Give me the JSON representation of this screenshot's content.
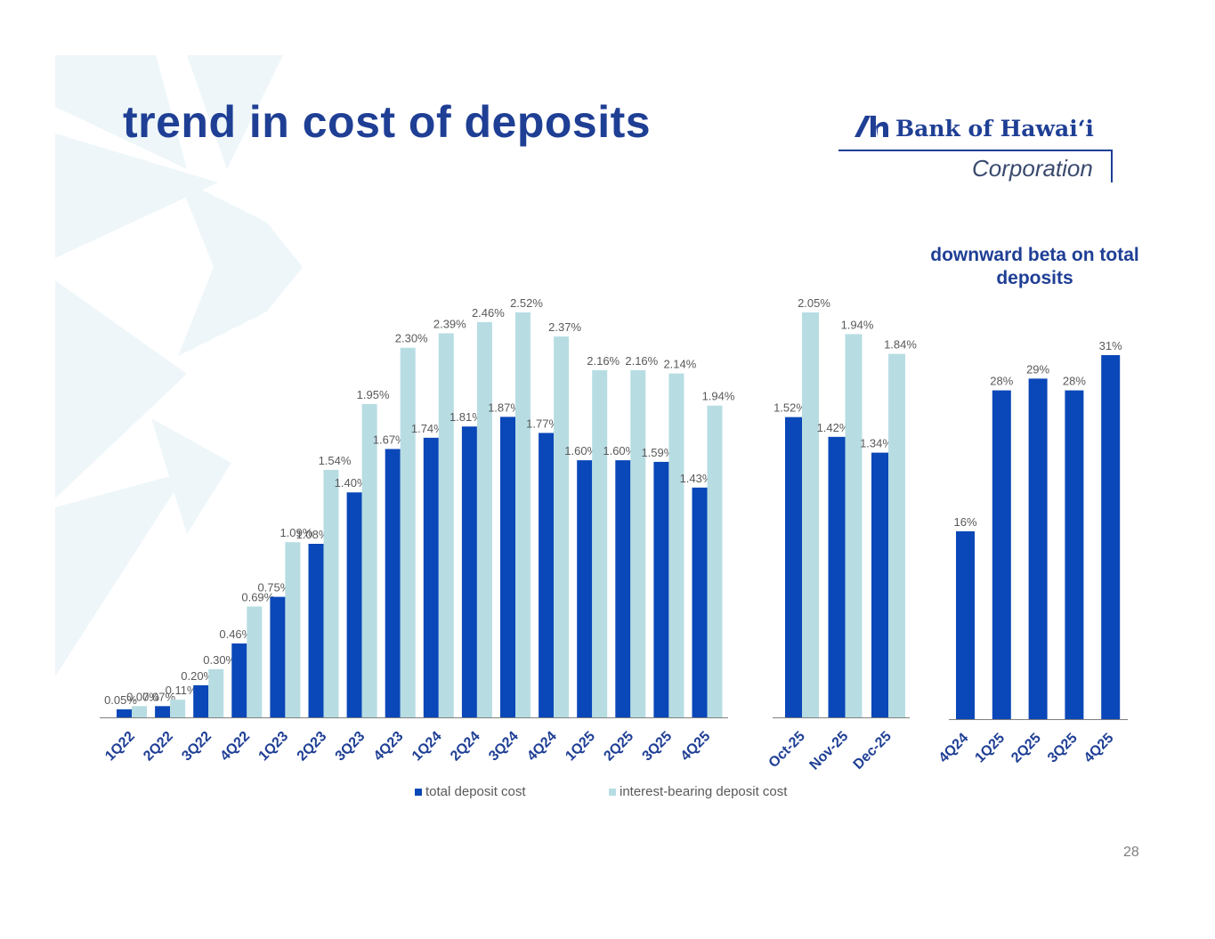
{
  "title": "trend in cost of deposits",
  "logo": {
    "name": "Bank of Hawaiʻi",
    "subtitle": "Corporation"
  },
  "beta_heading": "downward beta on total deposits",
  "page_number": "28",
  "colors": {
    "title": "#1f3f95",
    "total": "#0a47b8",
    "interest": "#b7dde3",
    "label": "#595959",
    "bg_art": "#eef6f9"
  },
  "legend": {
    "total_label": "total deposit cost",
    "interest_label": "interest-bearing deposit cost"
  },
  "chart_data": [
    {
      "type": "bar",
      "categories": [
        "1Q22",
        "2Q22",
        "3Q22",
        "4Q22",
        "1Q23",
        "2Q23",
        "3Q23",
        "4Q23",
        "1Q24",
        "2Q24",
        "3Q24",
        "4Q24",
        "1Q25",
        "2Q25",
        "3Q25",
        "4Q25"
      ],
      "series": [
        {
          "name": "total deposit cost",
          "values": [
            0.05,
            0.07,
            0.2,
            0.46,
            0.75,
            1.08,
            1.4,
            1.67,
            1.74,
            1.81,
            1.87,
            1.77,
            1.6,
            1.6,
            1.59,
            1.43
          ],
          "labels": [
            "0.05%",
            "0.07%",
            "0.20%",
            "0.46%",
            "0.75%",
            "1.08%",
            "1.40%",
            "1.67%",
            "1.74%",
            "1.81%",
            "1.87%",
            "1.77%",
            "1.60%",
            "1.60%",
            "1.59%",
            "1.43%"
          ]
        },
        {
          "name": "interest-bearing deposit cost",
          "values": [
            0.07,
            0.11,
            0.3,
            0.69,
            1.09,
            1.54,
            1.95,
            2.3,
            2.39,
            2.46,
            2.52,
            2.37,
            2.16,
            2.16,
            2.14,
            1.94
          ],
          "labels": [
            "0.07%",
            "0.11%",
            "0.30%",
            "0.69%",
            "1.09%",
            "1.54%",
            "1.95%",
            "2.30%",
            "2.39%",
            "2.46%",
            "2.52%",
            "2.37%",
            "2.16%",
            "2.16%",
            "2.14%",
            "1.94%"
          ]
        }
      ],
      "ylim": [
        0,
        2.6
      ],
      "unit": "%"
    },
    {
      "type": "bar",
      "categories": [
        "Oct-25",
        "Nov-25",
        "Dec-25"
      ],
      "series": [
        {
          "name": "total deposit cost",
          "values": [
            1.52,
            1.42,
            1.34
          ],
          "labels": [
            "1.52%",
            "1.42%",
            "1.34%"
          ]
        },
        {
          "name": "interest-bearing deposit cost",
          "values": [
            2.05,
            1.94,
            1.84
          ],
          "labels": [
            "2.05%",
            "1.94%",
            "1.84%"
          ]
        }
      ],
      "ylim": [
        0,
        2.6
      ],
      "unit": "%"
    },
    {
      "type": "bar",
      "title": "downward beta on total deposits",
      "categories": [
        "4Q24",
        "1Q25",
        "2Q25",
        "3Q25",
        "4Q25"
      ],
      "series": [
        {
          "values": [
            16,
            28,
            29,
            28,
            31
          ],
          "labels": [
            "16%",
            "28%",
            "29%",
            "28%",
            "31%"
          ]
        }
      ],
      "ylim": [
        0,
        32
      ],
      "unit": "%"
    }
  ]
}
